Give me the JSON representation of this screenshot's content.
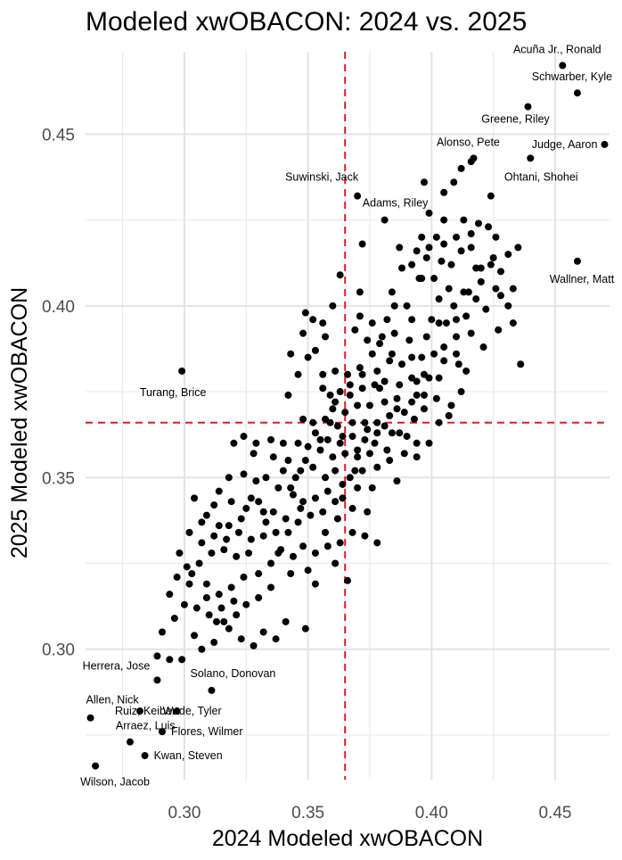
{
  "chart_data": {
    "type": "scatter",
    "title": "Modeled xwOBACON: 2024 vs. 2025",
    "xlabel": "2024 Modeled xwOBACON",
    "ylabel": "2025 Modeled xwOBACON",
    "xlim": [
      0.26,
      0.472
    ],
    "ylim": [
      0.262,
      0.474
    ],
    "x_ticks": [
      0.3,
      0.35,
      0.4,
      0.45
    ],
    "y_ticks": [
      0.3,
      0.35,
      0.4,
      0.45
    ],
    "x_tick_labels": [
      "0.30",
      "0.35",
      "0.40",
      "0.45"
    ],
    "y_tick_labels": [
      "0.30",
      "0.35",
      "0.40",
      "0.45"
    ],
    "reference_lines": {
      "vertical": 0.365,
      "horizontal": 0.366,
      "color": "#e8191c",
      "style": "dashed"
    },
    "grid": true,
    "point_color": "#000000",
    "labeled_points": [
      {
        "name": "Acuña Jr., Ronald",
        "x": 0.453,
        "y": 0.47
      },
      {
        "name": "Schwarber, Kyle",
        "x": 0.459,
        "y": 0.462
      },
      {
        "name": "Greene, Riley",
        "x": 0.439,
        "y": 0.458
      },
      {
        "name": "Judge, Aaron",
        "x": 0.47,
        "y": 0.447
      },
      {
        "name": "Alonso, Pete",
        "x": 0.417,
        "y": 0.443
      },
      {
        "name": "Ohtani, Shohei",
        "x": 0.44,
        "y": 0.443
      },
      {
        "name": "Suwinski, Jack",
        "x": 0.37,
        "y": 0.432
      },
      {
        "name": "Adams, Riley",
        "x": 0.381,
        "y": 0.425
      },
      {
        "name": "Wallner, Matt",
        "x": 0.459,
        "y": 0.413
      },
      {
        "name": "Turang, Brice",
        "x": 0.299,
        "y": 0.381
      },
      {
        "name": "Herrera, Jose",
        "x": 0.289,
        "y": 0.291
      },
      {
        "name": "Solano, Donovan",
        "x": 0.311,
        "y": 0.288
      },
      {
        "name": "Allen, Nick",
        "x": 0.262,
        "y": 0.28
      },
      {
        "name": "Ruiz, Keibert",
        "x": 0.282,
        "y": 0.282
      },
      {
        "name": "Wade, Tyler",
        "x": 0.297,
        "y": 0.282
      },
      {
        "name": "Arraez, Luis",
        "x": 0.278,
        "y": 0.273
      },
      {
        "name": "Flores, Wilmer",
        "x": 0.291,
        "y": 0.276
      },
      {
        "name": "Kwan, Steven",
        "x": 0.284,
        "y": 0.269
      },
      {
        "name": "Wilson, Jacob",
        "x": 0.264,
        "y": 0.266
      }
    ],
    "points": [
      [
        0.412,
        0.44
      ],
      [
        0.416,
        0.442
      ],
      [
        0.409,
        0.436
      ],
      [
        0.405,
        0.433
      ],
      [
        0.397,
        0.436
      ],
      [
        0.399,
        0.427
      ],
      [
        0.405,
        0.425
      ],
      [
        0.413,
        0.425
      ],
      [
        0.41,
        0.42
      ],
      [
        0.419,
        0.424
      ],
      [
        0.423,
        0.423
      ],
      [
        0.416,
        0.421
      ],
      [
        0.402,
        0.42
      ],
      [
        0.396,
        0.42
      ],
      [
        0.399,
        0.417
      ],
      [
        0.405,
        0.418
      ],
      [
        0.416,
        0.417
      ],
      [
        0.425,
        0.414
      ],
      [
        0.431,
        0.415
      ],
      [
        0.435,
        0.417
      ],
      [
        0.428,
        0.41
      ],
      [
        0.424,
        0.412
      ],
      [
        0.418,
        0.411
      ],
      [
        0.412,
        0.416
      ],
      [
        0.408,
        0.412
      ],
      [
        0.404,
        0.413
      ],
      [
        0.398,
        0.414
      ],
      [
        0.394,
        0.416
      ],
      [
        0.392,
        0.412
      ],
      [
        0.387,
        0.417
      ],
      [
        0.388,
        0.411
      ],
      [
        0.395,
        0.408
      ],
      [
        0.401,
        0.408
      ],
      [
        0.407,
        0.405
      ],
      [
        0.413,
        0.404
      ],
      [
        0.42,
        0.407
      ],
      [
        0.426,
        0.405
      ],
      [
        0.433,
        0.405
      ],
      [
        0.428,
        0.403
      ],
      [
        0.418,
        0.402
      ],
      [
        0.409,
        0.4
      ],
      [
        0.403,
        0.402
      ],
      [
        0.4,
        0.396
      ],
      [
        0.406,
        0.395
      ],
      [
        0.414,
        0.397
      ],
      [
        0.422,
        0.399
      ],
      [
        0.431,
        0.4
      ],
      [
        0.427,
        0.393
      ],
      [
        0.416,
        0.392
      ],
      [
        0.41,
        0.391
      ],
      [
        0.398,
        0.391
      ],
      [
        0.391,
        0.39
      ],
      [
        0.385,
        0.392
      ],
      [
        0.38,
        0.391
      ],
      [
        0.382,
        0.396
      ],
      [
        0.385,
        0.4
      ],
      [
        0.39,
        0.4
      ],
      [
        0.376,
        0.395
      ],
      [
        0.371,
        0.397
      ],
      [
        0.369,
        0.393
      ],
      [
        0.374,
        0.39
      ],
      [
        0.371,
        0.404
      ],
      [
        0.36,
        0.4
      ],
      [
        0.352,
        0.396
      ],
      [
        0.357,
        0.391
      ],
      [
        0.349,
        0.398
      ],
      [
        0.348,
        0.392
      ],
      [
        0.353,
        0.387
      ],
      [
        0.343,
        0.386
      ],
      [
        0.35,
        0.385
      ],
      [
        0.346,
        0.38
      ],
      [
        0.342,
        0.374
      ],
      [
        0.356,
        0.38
      ],
      [
        0.361,
        0.381
      ],
      [
        0.366,
        0.38
      ],
      [
        0.372,
        0.38
      ],
      [
        0.378,
        0.381
      ],
      [
        0.383,
        0.384
      ],
      [
        0.388,
        0.383
      ],
      [
        0.392,
        0.385
      ],
      [
        0.396,
        0.385
      ],
      [
        0.401,
        0.386
      ],
      [
        0.405,
        0.384
      ],
      [
        0.41,
        0.386
      ],
      [
        0.421,
        0.388
      ],
      [
        0.414,
        0.381
      ],
      [
        0.403,
        0.379
      ],
      [
        0.397,
        0.38
      ],
      [
        0.392,
        0.379
      ],
      [
        0.387,
        0.377
      ],
      [
        0.381,
        0.378
      ],
      [
        0.377,
        0.377
      ],
      [
        0.372,
        0.376
      ],
      [
        0.367,
        0.377
      ],
      [
        0.363,
        0.375
      ],
      [
        0.359,
        0.374
      ],
      [
        0.356,
        0.376
      ],
      [
        0.36,
        0.37
      ],
      [
        0.365,
        0.369
      ],
      [
        0.37,
        0.371
      ],
      [
        0.375,
        0.371
      ],
      [
        0.381,
        0.372
      ],
      [
        0.386,
        0.373
      ],
      [
        0.392,
        0.372
      ],
      [
        0.397,
        0.374
      ],
      [
        0.402,
        0.373
      ],
      [
        0.408,
        0.371
      ],
      [
        0.412,
        0.375
      ],
      [
        0.389,
        0.369
      ],
      [
        0.383,
        0.368
      ],
      [
        0.378,
        0.366
      ],
      [
        0.373,
        0.366
      ],
      [
        0.368,
        0.366
      ],
      [
        0.362,
        0.365
      ],
      [
        0.357,
        0.367
      ],
      [
        0.352,
        0.366
      ],
      [
        0.348,
        0.367
      ],
      [
        0.353,
        0.363
      ],
      [
        0.358,
        0.361
      ],
      [
        0.363,
        0.36
      ],
      [
        0.368,
        0.362
      ],
      [
        0.373,
        0.361
      ],
      [
        0.378,
        0.363
      ],
      [
        0.384,
        0.363
      ],
      [
        0.39,
        0.362
      ],
      [
        0.394,
        0.36
      ],
      [
        0.399,
        0.36
      ],
      [
        0.393,
        0.367
      ],
      [
        0.407,
        0.368
      ],
      [
        0.403,
        0.366
      ],
      [
        0.375,
        0.357
      ],
      [
        0.37,
        0.356
      ],
      [
        0.365,
        0.357
      ],
      [
        0.36,
        0.356
      ],
      [
        0.355,
        0.358
      ],
      [
        0.35,
        0.359
      ],
      [
        0.346,
        0.36
      ],
      [
        0.34,
        0.36
      ],
      [
        0.335,
        0.361
      ],
      [
        0.329,
        0.36
      ],
      [
        0.324,
        0.362
      ],
      [
        0.32,
        0.36
      ],
      [
        0.328,
        0.357
      ],
      [
        0.336,
        0.356
      ],
      [
        0.342,
        0.355
      ],
      [
        0.347,
        0.352
      ],
      [
        0.352,
        0.353
      ],
      [
        0.357,
        0.35
      ],
      [
        0.361,
        0.352
      ],
      [
        0.367,
        0.35
      ],
      [
        0.372,
        0.352
      ],
      [
        0.378,
        0.353
      ],
      [
        0.383,
        0.355
      ],
      [
        0.389,
        0.357
      ],
      [
        0.394,
        0.356
      ],
      [
        0.382,
        0.358
      ],
      [
        0.386,
        0.349
      ],
      [
        0.376,
        0.347
      ],
      [
        0.37,
        0.347
      ],
      [
        0.364,
        0.348
      ],
      [
        0.358,
        0.346
      ],
      [
        0.353,
        0.344
      ],
      [
        0.348,
        0.343
      ],
      [
        0.344,
        0.345
      ],
      [
        0.338,
        0.347
      ],
      [
        0.333,
        0.35
      ],
      [
        0.329,
        0.349
      ],
      [
        0.324,
        0.351
      ],
      [
        0.318,
        0.35
      ],
      [
        0.314,
        0.346
      ],
      [
        0.319,
        0.343
      ],
      [
        0.325,
        0.341
      ],
      [
        0.33,
        0.343
      ],
      [
        0.336,
        0.34
      ],
      [
        0.341,
        0.338
      ],
      [
        0.346,
        0.337
      ],
      [
        0.351,
        0.339
      ],
      [
        0.356,
        0.34
      ],
      [
        0.362,
        0.338
      ],
      [
        0.368,
        0.341
      ],
      [
        0.374,
        0.34
      ],
      [
        0.364,
        0.344
      ],
      [
        0.347,
        0.341
      ],
      [
        0.342,
        0.334
      ],
      [
        0.337,
        0.334
      ],
      [
        0.332,
        0.333
      ],
      [
        0.327,
        0.332
      ],
      [
        0.322,
        0.334
      ],
      [
        0.317,
        0.332
      ],
      [
        0.312,
        0.333
      ],
      [
        0.307,
        0.337
      ],
      [
        0.302,
        0.334
      ],
      [
        0.304,
        0.344
      ],
      [
        0.309,
        0.339
      ],
      [
        0.314,
        0.336
      ],
      [
        0.318,
        0.336
      ],
      [
        0.323,
        0.338
      ],
      [
        0.326,
        0.328
      ],
      [
        0.321,
        0.327
      ],
      [
        0.316,
        0.329
      ],
      [
        0.311,
        0.328
      ],
      [
        0.306,
        0.325
      ],
      [
        0.301,
        0.324
      ],
      [
        0.297,
        0.321
      ],
      [
        0.302,
        0.319
      ],
      [
        0.309,
        0.319
      ],
      [
        0.314,
        0.316
      ],
      [
        0.319,
        0.318
      ],
      [
        0.324,
        0.321
      ],
      [
        0.33,
        0.322
      ],
      [
        0.335,
        0.325
      ],
      [
        0.339,
        0.329
      ],
      [
        0.344,
        0.327
      ],
      [
        0.348,
        0.33
      ],
      [
        0.353,
        0.328
      ],
      [
        0.358,
        0.33
      ],
      [
        0.363,
        0.331
      ],
      [
        0.368,
        0.334
      ],
      [
        0.373,
        0.333
      ],
      [
        0.378,
        0.331
      ],
      [
        0.335,
        0.318
      ],
      [
        0.33,
        0.315
      ],
      [
        0.325,
        0.313
      ],
      [
        0.32,
        0.314
      ],
      [
        0.315,
        0.312
      ],
      [
        0.31,
        0.31
      ],
      [
        0.305,
        0.312
      ],
      [
        0.3,
        0.313
      ],
      [
        0.296,
        0.309
      ],
      [
        0.291,
        0.305
      ],
      [
        0.294,
        0.316
      ],
      [
        0.289,
        0.298
      ],
      [
        0.294,
        0.297
      ],
      [
        0.299,
        0.297
      ],
      [
        0.304,
        0.304
      ],
      [
        0.307,
        0.3
      ],
      [
        0.312,
        0.302
      ],
      [
        0.313,
        0.308
      ],
      [
        0.318,
        0.306
      ],
      [
        0.323,
        0.303
      ],
      [
        0.328,
        0.301
      ],
      [
        0.332,
        0.305
      ],
      [
        0.337,
        0.303
      ],
      [
        0.341,
        0.308
      ],
      [
        0.349,
        0.306
      ],
      [
        0.366,
        0.32
      ],
      [
        0.353,
        0.319
      ],
      [
        0.35,
        0.323
      ],
      [
        0.361,
        0.325
      ],
      [
        0.343,
        0.347
      ],
      [
        0.349,
        0.355
      ],
      [
        0.355,
        0.361
      ],
      [
        0.361,
        0.372
      ],
      [
        0.367,
        0.374
      ],
      [
        0.371,
        0.382
      ],
      [
        0.376,
        0.386
      ],
      [
        0.379,
        0.389
      ],
      [
        0.356,
        0.395
      ],
      [
        0.363,
        0.409
      ],
      [
        0.372,
        0.418
      ],
      [
        0.384,
        0.404
      ],
      [
        0.396,
        0.408
      ],
      [
        0.403,
        0.395
      ],
      [
        0.411,
        0.383
      ],
      [
        0.394,
        0.378
      ],
      [
        0.387,
        0.363
      ],
      [
        0.397,
        0.37
      ],
      [
        0.332,
        0.34
      ],
      [
        0.327,
        0.344
      ],
      [
        0.338,
        0.328
      ],
      [
        0.343,
        0.322
      ],
      [
        0.307,
        0.331
      ],
      [
        0.312,
        0.342
      ],
      [
        0.316,
        0.308
      ],
      [
        0.298,
        0.328
      ],
      [
        0.303,
        0.322
      ],
      [
        0.357,
        0.334
      ],
      [
        0.361,
        0.343
      ],
      [
        0.37,
        0.358
      ],
      [
        0.377,
        0.36
      ],
      [
        0.381,
        0.365
      ],
      [
        0.386,
        0.37
      ],
      [
        0.394,
        0.374
      ],
      [
        0.399,
        0.379
      ],
      [
        0.405,
        0.388
      ],
      [
        0.41,
        0.396
      ],
      [
        0.415,
        0.404
      ],
      [
        0.42,
        0.411
      ],
      [
        0.426,
        0.42
      ],
      [
        0.424,
        0.432
      ],
      [
        0.433,
        0.395
      ],
      [
        0.436,
        0.383
      ],
      [
        0.392,
        0.396
      ],
      [
        0.384,
        0.386
      ],
      [
        0.379,
        0.376
      ],
      [
        0.374,
        0.364
      ],
      [
        0.369,
        0.352
      ],
      [
        0.364,
        0.362
      ],
      [
        0.359,
        0.366
      ],
      [
        0.34,
        0.352
      ],
      [
        0.345,
        0.35
      ],
      [
        0.333,
        0.337
      ],
      [
        0.309,
        0.315
      ],
      [
        0.321,
        0.31
      ]
    ]
  }
}
